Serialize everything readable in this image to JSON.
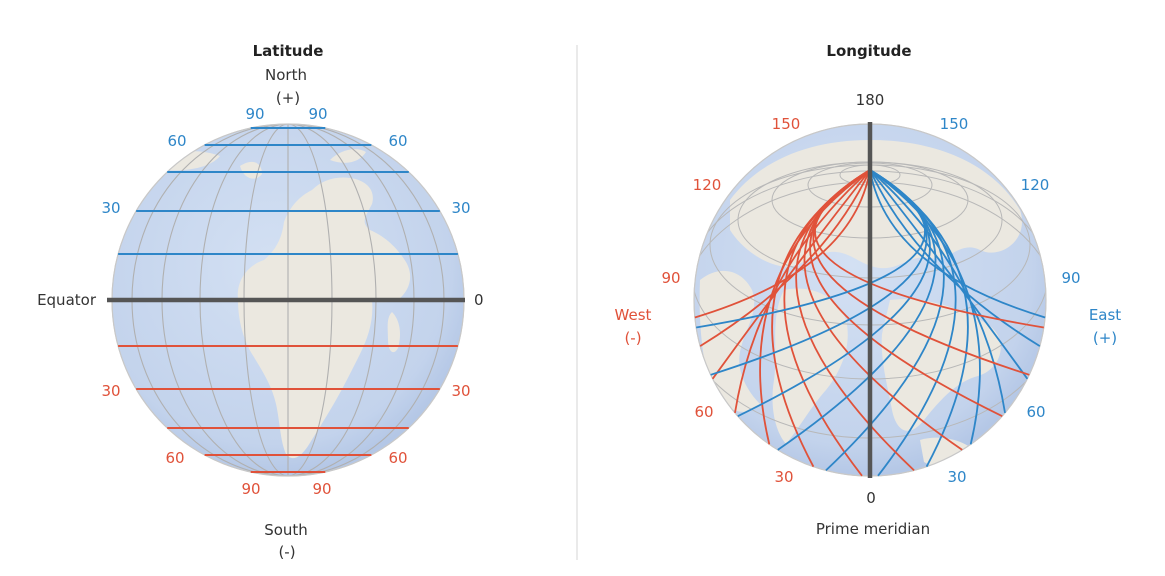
{
  "latitude_panel": {
    "title": "Latitude",
    "north_label": "North",
    "north_sign": "(+)",
    "south_label": "South",
    "south_sign": "(-)",
    "equator_label": "Equator",
    "equator_value": "0",
    "north_labels": [
      "90",
      "90",
      "60",
      "60",
      "30",
      "30"
    ],
    "south_labels": [
      "30",
      "30",
      "60",
      "60",
      "90",
      "90"
    ],
    "north_lines": 5,
    "south_lines": 5
  },
  "longitude_panel": {
    "title": "Longitude",
    "top_value": "180",
    "bottom_value": "0",
    "prime_meridian_label": "Prime meridian",
    "west_label": "West",
    "west_sign": "(-)",
    "east_label": "East",
    "east_sign": "(+)",
    "west_values": [
      "150",
      "120",
      "90",
      "60",
      "30"
    ],
    "east_values": [
      "150",
      "120",
      "90",
      "60",
      "30"
    ]
  },
  "colors": {
    "north": "#2e86c8",
    "south": "#e0523a",
    "east": "#2e86c8",
    "west": "#e0523a",
    "equator": "#555555",
    "ocean": "#c5d6ee",
    "land": "#ebe8e0",
    "grid": "#b0b0b0",
    "divider": "#e4e4e4"
  }
}
